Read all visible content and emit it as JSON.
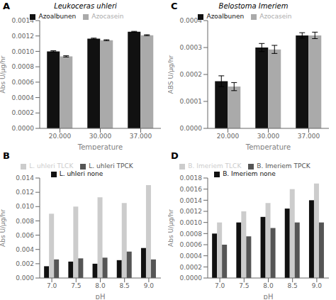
{
  "chart_data": [
    {
      "type": "bar",
      "title": "Leukoceras uhleri",
      "annotations": [
        "A"
      ],
      "xlabel": "Temperature",
      "ylabel": "Abs U/µg/hr",
      "categories": [
        "20.000",
        "30.000",
        "37.000"
      ],
      "series": [
        {
          "name": "Azoalbunen",
          "color": "#111111",
          "values": [
            0.001,
            0.001165,
            0.001255
          ],
          "errors": [
            8e-06,
            7e-06,
            5e-06
          ]
        },
        {
          "name": "Azocasein",
          "color": "#aaaaaa",
          "values": [
            0.000935,
            0.001145,
            0.00121
          ],
          "errors": [
            8e-06,
            6e-06,
            6e-06
          ]
        }
      ],
      "ylim": [
        0,
        0.0014
      ],
      "yticks": [
        {
          "value": 0,
          "label": "0.0000"
        },
        {
          "value": 0.0002,
          "label": "0.0002"
        },
        {
          "value": 0.0004,
          "label": "0.0004"
        },
        {
          "value": 0.0006,
          "label": "0.0006"
        },
        {
          "value": 0.0008,
          "label": "0.0008"
        },
        {
          "value": 0.001,
          "label": "0.0010"
        },
        {
          "value": 0.0012,
          "label": "0.0012"
        },
        {
          "value": 0.0014,
          "label": "0.0014"
        }
      ],
      "legend": "top",
      "grid": false
    },
    {
      "type": "bar",
      "title": "Belostoma Imeriem",
      "annotations": [
        "C"
      ],
      "xlabel": "Temperature",
      "ylabel": "ABS U/µg/hr",
      "categories": [
        "20.000",
        "30.000",
        "37.000"
      ],
      "series": [
        {
          "name": "Azoalbunen",
          "color": "#111111",
          "values": [
            0.000175,
            0.0003,
            0.000345
          ],
          "errors": [
            2e-05,
            1.5e-05,
            1e-05
          ]
        },
        {
          "name": "Azocasein",
          "color": "#aaaaaa",
          "values": [
            0.000155,
            0.000293,
            0.000345
          ],
          "errors": [
            1.5e-05,
            1.5e-05,
            1.2e-05
          ]
        }
      ],
      "ylim": [
        0,
        0.0004
      ],
      "yticks": [
        {
          "value": 0,
          "label": "0.0000"
        },
        {
          "value": 0.0001,
          "label": "0.0001"
        },
        {
          "value": 0.0002,
          "label": "0.0002"
        },
        {
          "value": 0.0003,
          "label": "0.0003"
        },
        {
          "value": 0.0004,
          "label": "0.0004"
        }
      ],
      "legend": "top",
      "grid": false
    },
    {
      "type": "bar",
      "annotations": [
        "B"
      ],
      "xlabel": "pH",
      "ylabel": "Abs U/µg/hr",
      "categories": [
        "7.0",
        "7.5",
        "8.0",
        "8.5",
        "9.0"
      ],
      "series": [
        {
          "name": "L. uhleri none",
          "color": "#111111",
          "values": [
            0.00165,
            0.0023,
            0.002,
            0.0025,
            0.0042
          ]
        },
        {
          "name": "L. uhleri TLCK",
          "color": "#cccccc",
          "values": [
            0.009,
            0.01,
            0.0113,
            0.0105,
            0.013
          ]
        },
        {
          "name": "L. uhleri TPCK",
          "color": "#555555",
          "values": [
            0.0026,
            0.00275,
            0.00285,
            0.0037,
            0.0026
          ]
        }
      ],
      "ylim": [
        0,
        0.014
      ],
      "yticks": [
        {
          "value": 0,
          "label": "0.000"
        },
        {
          "value": 0.002,
          "label": "0.002"
        },
        {
          "value": 0.004,
          "label": "0.004"
        },
        {
          "value": 0.006,
          "label": "0.006"
        },
        {
          "value": 0.008,
          "label": "0.008"
        },
        {
          "value": 0.01,
          "label": "0.010"
        },
        {
          "value": 0.012,
          "label": "0.012"
        },
        {
          "value": 0.014,
          "label": "0.014"
        }
      ],
      "legend": "top",
      "grid": false
    },
    {
      "type": "bar",
      "annotations": [
        "D"
      ],
      "xlabel": "pH",
      "ylabel": "Abs U/µg/hr",
      "categories": [
        "7.0",
        "7.5",
        "8.0",
        "8.5",
        "9.0"
      ],
      "series": [
        {
          "name": "B. Imeriem none",
          "color": "#111111",
          "values": [
            0.0008,
            0.001,
            0.0011,
            0.00125,
            0.0014
          ]
        },
        {
          "name": "B. Imeriem TLCK",
          "color": "#cccccc",
          "values": [
            0.001,
            0.0012,
            0.00135,
            0.0016,
            0.0017
          ]
        },
        {
          "name": "B. Imeriem TPCK",
          "color": "#555555",
          "values": [
            0.0006,
            0.00075,
            0.0009,
            0.001,
            0.001
          ]
        }
      ],
      "ylim": [
        0,
        0.0018
      ],
      "yticks": [
        {
          "value": 0,
          "label": "0.0000"
        },
        {
          "value": 0.0002,
          "label": "0.0002"
        },
        {
          "value": 0.0004,
          "label": "0.0004"
        },
        {
          "value": 0.0006,
          "label": "0.0006"
        },
        {
          "value": 0.0008,
          "label": "0.0008"
        },
        {
          "value": 0.001,
          "label": "0.0010"
        },
        {
          "value": 0.0012,
          "label": "0.0012"
        },
        {
          "value": 0.0014,
          "label": "0.0014"
        },
        {
          "value": 0.0016,
          "label": "0.0016"
        },
        {
          "value": 0.0018,
          "label": "0.0018"
        }
      ],
      "legend": "top",
      "grid": false
    }
  ]
}
